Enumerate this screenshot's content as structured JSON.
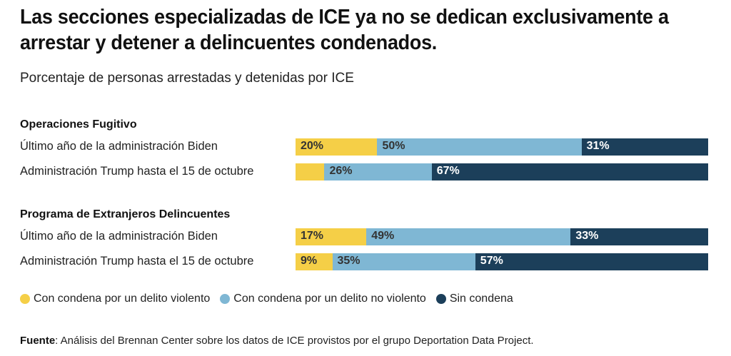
{
  "header": {
    "title": "Las secciones especializadas de ICE ya no se dedican exclusivamente a arrestar y detener a delincuentes condenados.",
    "subtitle": "Porcentaje de personas arrestadas y detenidas por ICE"
  },
  "colors": {
    "violent": "#f5cf47",
    "nonviolent": "#7fb7d4",
    "none": "#1c3f5a",
    "label_dark": "#333333",
    "label_light": "#ffffff"
  },
  "legend": [
    {
      "key": "violent",
      "label": "Con condena por un delito violento"
    },
    {
      "key": "nonviolent",
      "label": "Con condena por un delito no violento"
    },
    {
      "key": "none",
      "label": "Sin condena"
    }
  ],
  "source": {
    "label": "Fuente",
    "text": ":  Análisis del Brennan Center sobre los datos de ICE provistos por el grupo Deportation Data Project."
  },
  "chart_data": {
    "type": "bar",
    "orientation": "horizontal-stacked-100",
    "title": "Las secciones especializadas de ICE ya no se dedican exclusivamente a arrestar y detener a delincuentes condenados.",
    "subtitle": "Porcentaje de personas arrestadas y detenidas por ICE",
    "series_names": [
      "Con condena por un delito violento",
      "Con condena por un delito no violento",
      "Sin condena"
    ],
    "legend_position": "bottom",
    "groups": [
      {
        "name": "Operaciones Fugitivo",
        "rows": [
          {
            "label": "Último año de la administración Biden",
            "values": [
              20,
              50,
              31
            ],
            "labels": [
              "20%",
              "50%",
              "31%"
            ]
          },
          {
            "label": "Administración Trump hasta el 15 de octubre",
            "values": [
              7,
              26,
              67
            ],
            "labels": [
              "",
              "26%",
              "67%"
            ]
          }
        ]
      },
      {
        "name": "Programa de Extranjeros Delincuentes",
        "rows": [
          {
            "label": "Último año de la administración Biden",
            "values": [
              17,
              49,
              33
            ],
            "labels": [
              "17%",
              "49%",
              "33%"
            ]
          },
          {
            "label": "Administración Trump hasta el 15 de octubre",
            "values": [
              9,
              35,
              57
            ],
            "labels": [
              "9%",
              "35%",
              "57%"
            ]
          }
        ]
      }
    ]
  }
}
